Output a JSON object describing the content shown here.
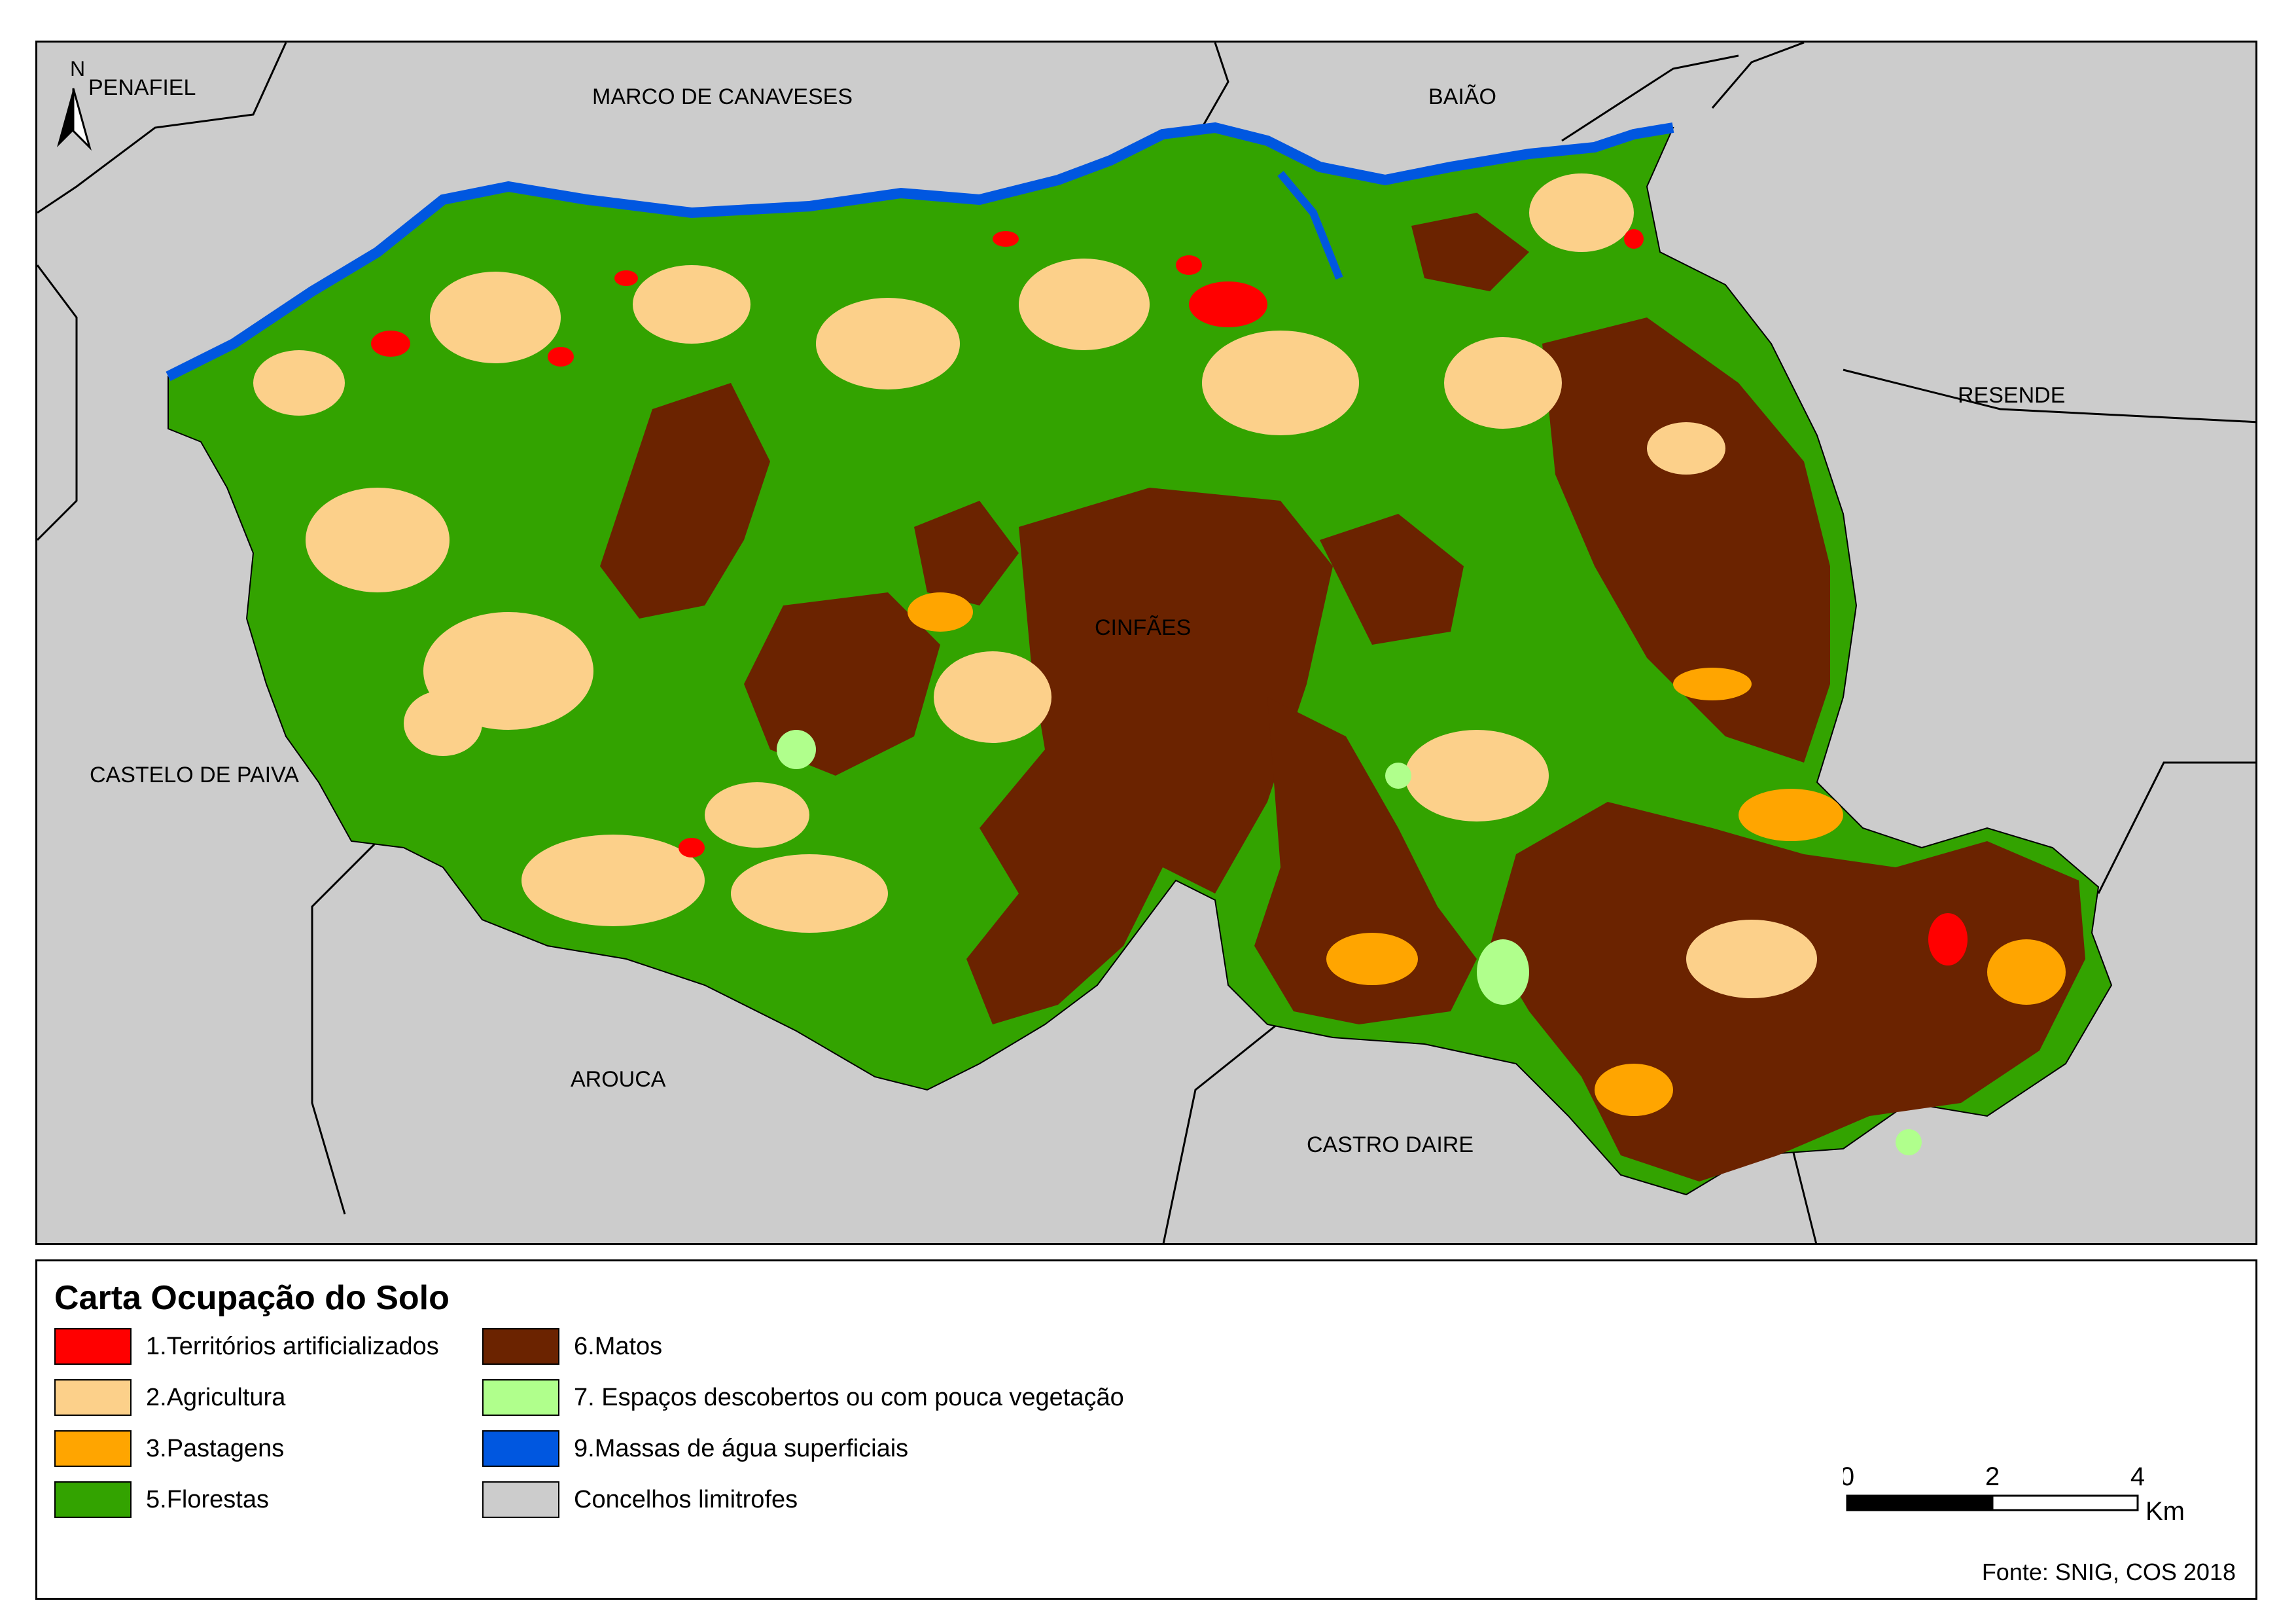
{
  "map": {
    "labels": {
      "penafiel": "PENAFIEL",
      "marco": "MARCO DE CANAVESES",
      "baiao": "BAIÃO",
      "resende": "RESENDE",
      "castelo": "CASTELO DE PAIVA",
      "cinfaes": "CINFÃES",
      "arouca": "AROUCA",
      "castro": "CASTRO DAIRE"
    },
    "north_letter": "N"
  },
  "legend": {
    "title": "Carta Ocupação do Solo",
    "items": [
      {
        "label": "1.Territórios artificializados",
        "color": "#ff0000"
      },
      {
        "label": "2.Agricultura",
        "color": "#fcd08a"
      },
      {
        "label": "3.Pastagens",
        "color": "#ffa500"
      },
      {
        "label": "5.Florestas",
        "color": "#33a300"
      },
      {
        "label": "6.Matos",
        "color": "#6b2300"
      },
      {
        "label": "7. Espaços descobertos ou com pouca vegetação",
        "color": "#b0ff8c"
      },
      {
        "label": "9.Massas de água superficiais",
        "color": "#0057e0"
      },
      {
        "label": "Concelhos limitrofes",
        "color": "#cccccc"
      }
    ]
  },
  "scale": {
    "tick0": "0",
    "tick1": "2",
    "tick2": "4",
    "unit": "Km"
  },
  "source": "Fonte: SNIG, COS 2018"
}
